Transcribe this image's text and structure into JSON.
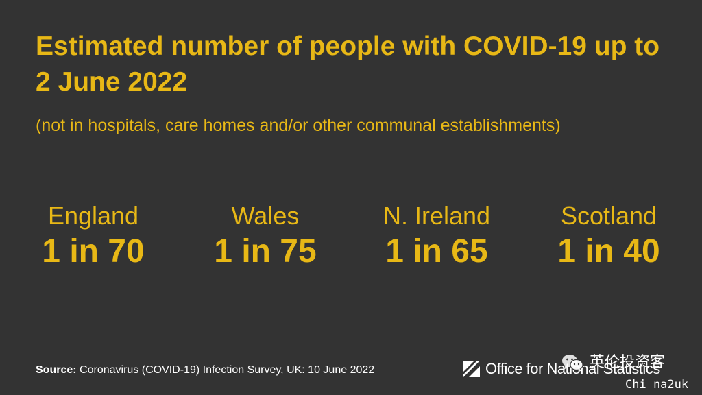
{
  "title": "Estimated number of people with COVID-19 up to 2 June 2022",
  "subtitle": "(not in hospitals, care homes and/or other communal establishments)",
  "stats": [
    {
      "name": "England",
      "value": "1 in 70"
    },
    {
      "name": "Wales",
      "value": "1 in 75"
    },
    {
      "name": "N. Ireland",
      "value": "1 in 65"
    },
    {
      "name": "Scotland",
      "value": "1 in 40"
    }
  ],
  "source": {
    "label": "Source:",
    "text": "Coronavirus (COVID-19) Infection Survey, UK: 10 June 2022"
  },
  "logo": {
    "text": "Office for National Statistics",
    "icon": "ons-logo-icon"
  },
  "watermark": {
    "icon": "wechat-icon",
    "cn_text": "英伦投资客",
    "en_text": "Chi na2uk"
  },
  "colors": {
    "background": "#333333",
    "accent": "#e8b816",
    "text_light": "#ffffff"
  }
}
